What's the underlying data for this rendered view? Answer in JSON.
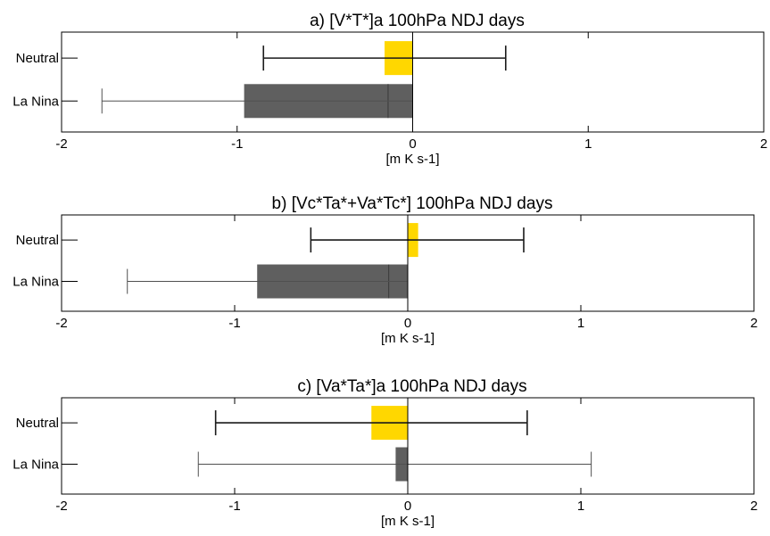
{
  "chart_data": [
    {
      "type": "bar",
      "orientation": "horizontal",
      "title": "a) [V*T*]a 100hPa NDJ days",
      "xlabel": "[m K s-1]",
      "ylabel": "",
      "xlim": [
        -2,
        2
      ],
      "xticks": [
        "-2",
        "-1",
        "0",
        "1",
        "2"
      ],
      "grid": false,
      "categories": [
        "Neutral",
        "La Nina"
      ],
      "values": [
        -0.16,
        -0.96
      ],
      "bar_colors": [
        "#FFD700",
        "#5F5F5F"
      ],
      "medians": [
        null,
        -0.14
      ],
      "whisker_ranges": [
        [
          -0.85,
          0.53
        ],
        [
          -1.77,
          0.0
        ]
      ]
    },
    {
      "type": "bar",
      "orientation": "horizontal",
      "title": "b) [Vc*Ta*+Va*Tc*] 100hPa NDJ days",
      "xlabel": "[m K s-1]",
      "ylabel": "",
      "xlim": [
        -2,
        2
      ],
      "xticks": [
        "-2",
        "-1",
        "0",
        "1",
        "2"
      ],
      "grid": false,
      "categories": [
        "Neutral",
        "La Nina"
      ],
      "values": [
        0.06,
        -0.87
      ],
      "bar_colors": [
        "#FFD700",
        "#5F5F5F"
      ],
      "medians": [
        null,
        -0.11
      ],
      "whisker_ranges": [
        [
          -0.56,
          0.67
        ],
        [
          -1.62,
          0.0
        ]
      ]
    },
    {
      "type": "bar",
      "orientation": "horizontal",
      "title": "c) [Va*Ta*]a 100hPa NDJ days",
      "xlabel": "[m K s-1]",
      "ylabel": "",
      "xlim": [
        -2,
        2
      ],
      "xticks": [
        "-2",
        "-1",
        "0",
        "1",
        "2"
      ],
      "grid": false,
      "categories": [
        "Neutral",
        "La Nina"
      ],
      "values": [
        -0.21,
        -0.07
      ],
      "bar_colors": [
        "#FFD700",
        "#5F5F5F"
      ],
      "medians": [
        null,
        null
      ],
      "whisker_ranges": [
        [
          -1.11,
          0.69
        ],
        [
          -1.21,
          1.06
        ]
      ]
    }
  ]
}
